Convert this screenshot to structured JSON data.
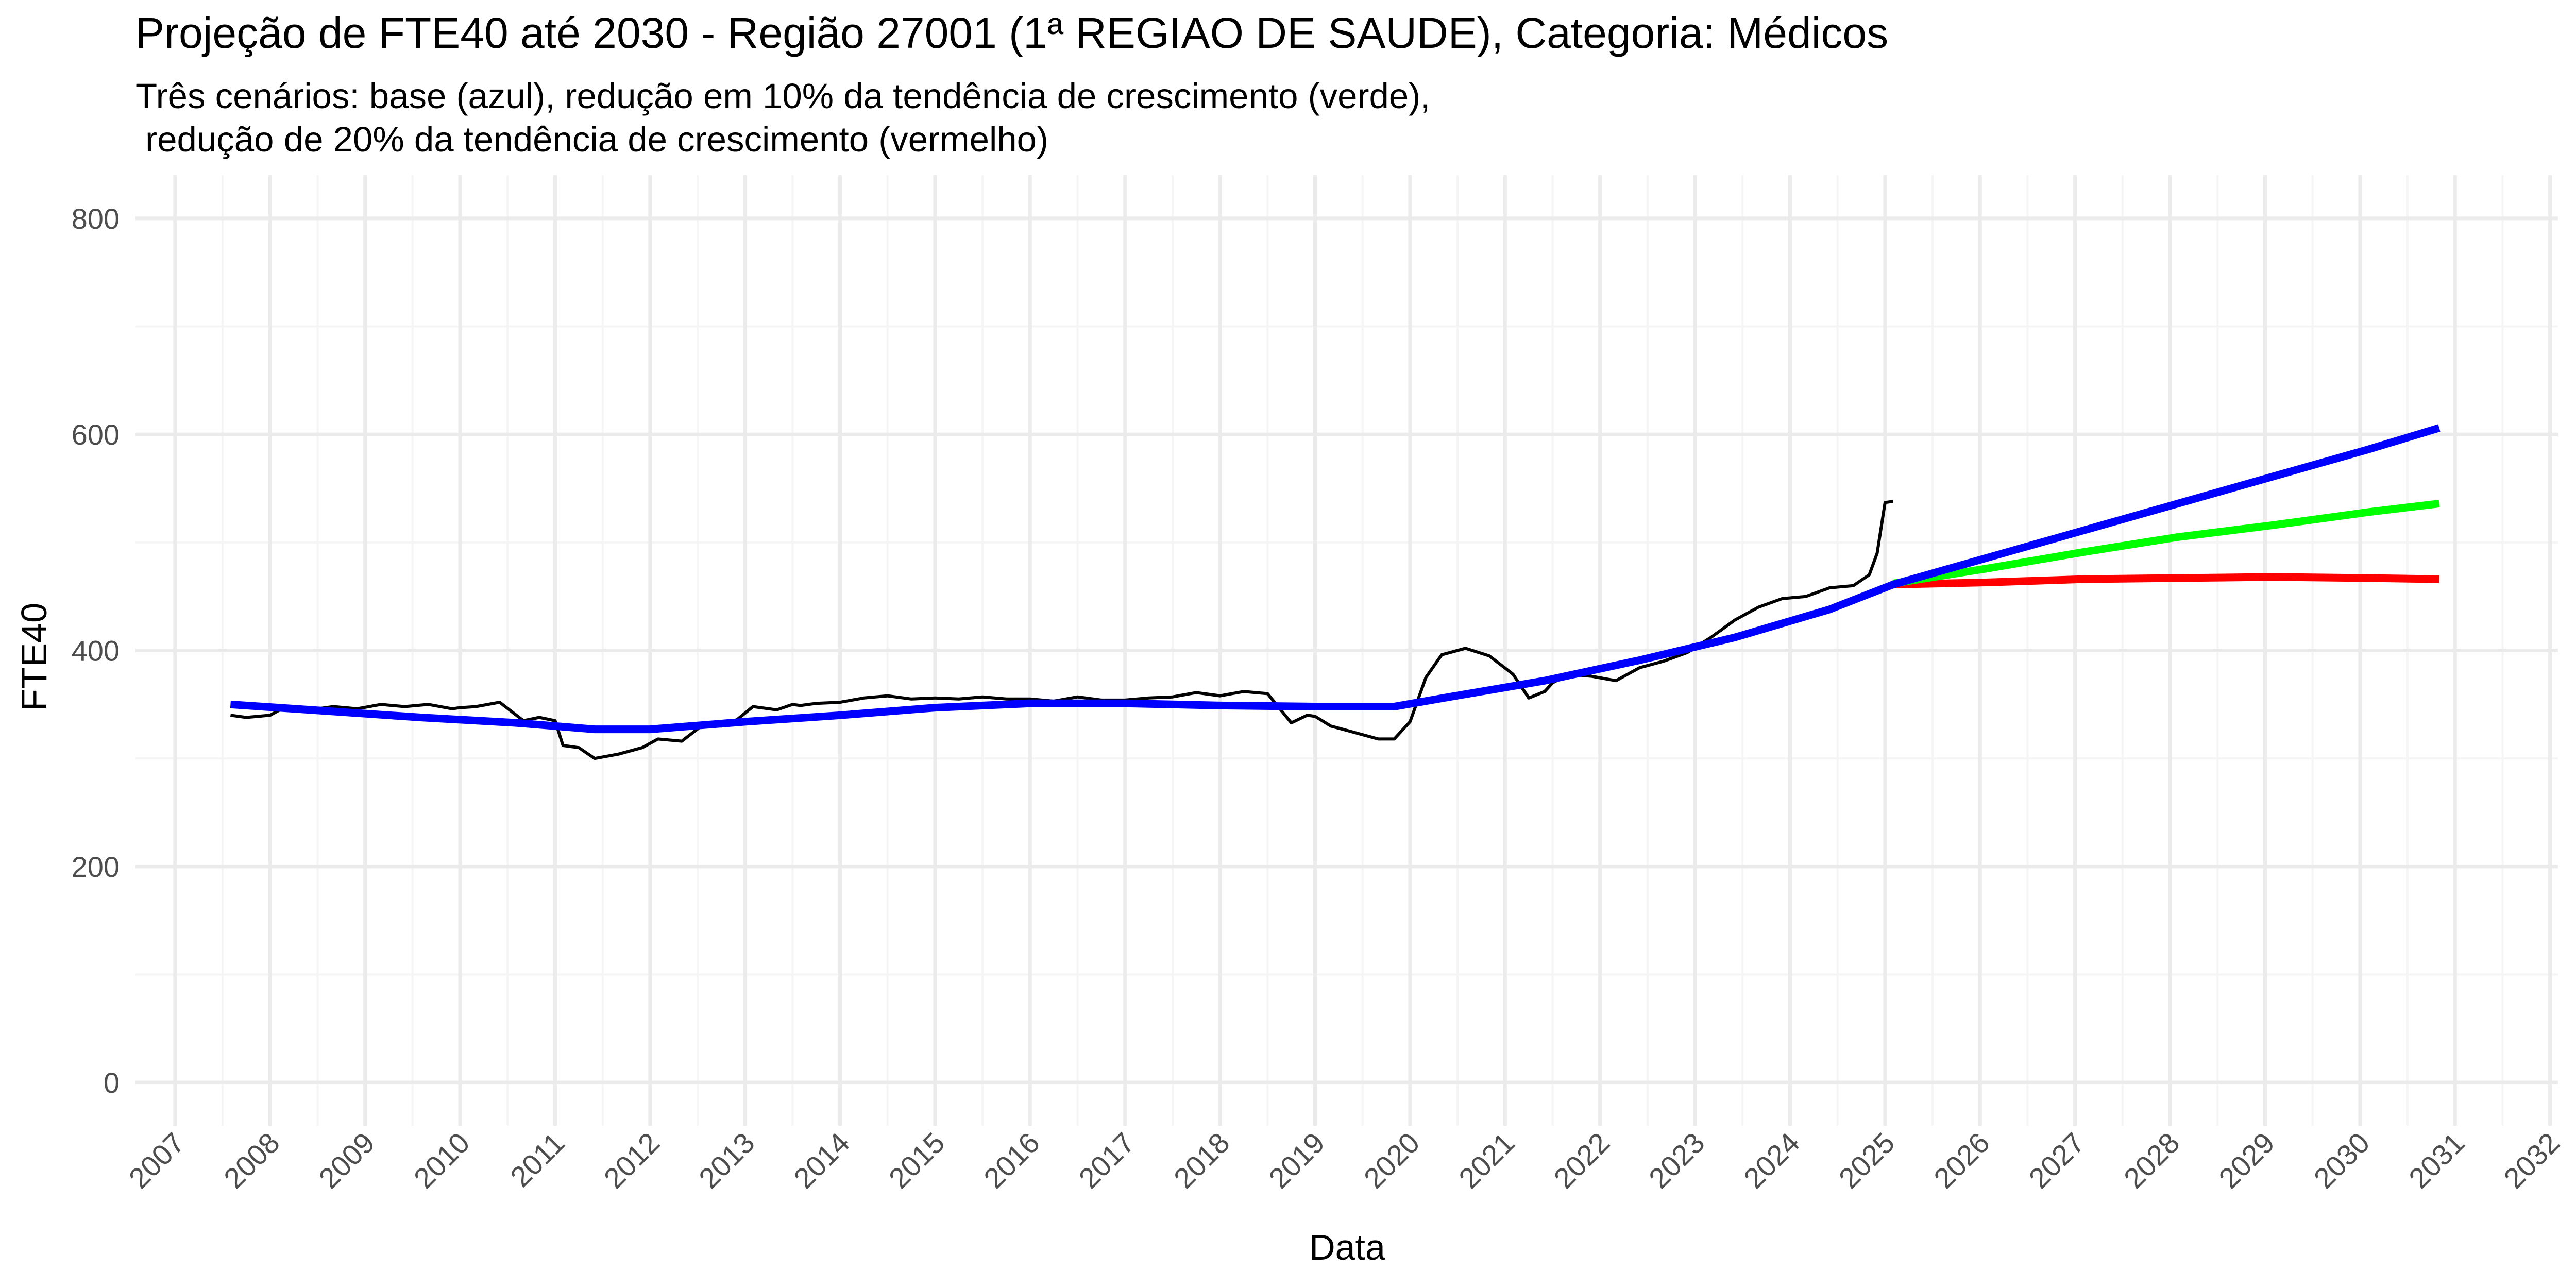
{
  "chart_data": {
    "type": "line",
    "title": "Projeção de FTE40 até 2030 - Região 27001 (1ª REGIAO DE SAUDE), Categoria: Médicos",
    "subtitle": "Três cenários: base (azul), redução em 10% da tendência de crescimento (verde),\n redução de 20% da tendência de crescimento (vermelho)",
    "xlabel": "Data",
    "ylabel": "FTE40",
    "xlim": [
      "2006-08-01",
      "2032-02-01"
    ],
    "ylim": [
      -40,
      840
    ],
    "x_ticks": [
      "2007",
      "2008",
      "2009",
      "2010",
      "2011",
      "2012",
      "2013",
      "2014",
      "2015",
      "2016",
      "2017",
      "2018",
      "2019",
      "2020",
      "2021",
      "2022",
      "2023",
      "2024",
      "2025",
      "2026",
      "2027",
      "2028",
      "2029",
      "2030",
      "2031",
      "2032"
    ],
    "y_ticks": [
      0,
      200,
      400,
      600,
      800
    ],
    "grid": true,
    "legend": "none",
    "colors": {
      "observed": "#000000",
      "base": "#0000ff",
      "reduction_10": "#00ff00",
      "reduction_20": "#ff0000",
      "grid_major": "#ebebeb",
      "grid_minor": "#f5f5f5"
    },
    "series": [
      {
        "key": "observed",
        "x": [
          "2007-08-01",
          "2007-10-01",
          "2008-01-01",
          "2008-03-01",
          "2008-06-01",
          "2008-09-01",
          "2008-12-01",
          "2009-03-01",
          "2009-06-01",
          "2009-09-01",
          "2009-12-01",
          "2010-01-01",
          "2010-03-01",
          "2010-06-01",
          "2010-09-01",
          "2010-11-01",
          "2011-01-01",
          "2011-02-01",
          "2011-04-01",
          "2011-06-01",
          "2011-09-01",
          "2011-12-01",
          "2012-02-01",
          "2012-05-01",
          "2012-08-01",
          "2012-10-01",
          "2012-12-01",
          "2013-02-01",
          "2013-05-01",
          "2013-07-01",
          "2013-08-01",
          "2013-10-01",
          "2014-01-01",
          "2014-04-01",
          "2014-07-01",
          "2014-10-01",
          "2015-01-01",
          "2015-04-01",
          "2015-07-01",
          "2015-10-01",
          "2016-01-01",
          "2016-04-01",
          "2016-07-01",
          "2016-10-01",
          "2017-01-01",
          "2017-04-01",
          "2017-07-01",
          "2017-10-01",
          "2018-01-01",
          "2018-04-01",
          "2018-07-01",
          "2018-10-01",
          "2018-12-01",
          "2019-01-01",
          "2019-03-01",
          "2019-05-01",
          "2019-07-01",
          "2019-09-01",
          "2019-11-01",
          "2020-01-01",
          "2020-03-01",
          "2020-05-01",
          "2020-08-01",
          "2020-11-01",
          "2021-02-01",
          "2021-04-01",
          "2021-06-01",
          "2021-07-01",
          "2021-09-01",
          "2021-12-01",
          "2022-03-01",
          "2022-06-01",
          "2022-09-01",
          "2022-12-01",
          "2023-03-01",
          "2023-06-01",
          "2023-09-01",
          "2023-12-01",
          "2024-03-01",
          "2024-06-01",
          "2024-09-01",
          "2024-11-01",
          "2024-12-01",
          "2025-01-01",
          "2025-02-01"
        ],
        "values": [
          340,
          338,
          340,
          348,
          345,
          348,
          346,
          350,
          348,
          350,
          346,
          347,
          348,
          352,
          335,
          338,
          335,
          312,
          310,
          300,
          304,
          310,
          318,
          316,
          333,
          330,
          336,
          348,
          345,
          350,
          349,
          351,
          352,
          356,
          358,
          355,
          356,
          355,
          357,
          355,
          355,
          353,
          357,
          354,
          354,
          356,
          357,
          361,
          358,
          362,
          360,
          333,
          340,
          339,
          330,
          326,
          322,
          318,
          318,
          334,
          375,
          396,
          402,
          395,
          378,
          356,
          362,
          370,
          378,
          376,
          372,
          384,
          390,
          398,
          412,
          428,
          440,
          448,
          450,
          458,
          460,
          470,
          490,
          537,
          538
        ]
      },
      {
        "key": "base",
        "x": [
          "2007-08-01",
          "2008-08-01",
          "2009-08-01",
          "2010-08-01",
          "2011-06-01",
          "2012-01-01",
          "2013-01-01",
          "2014-01-01",
          "2015-01-01",
          "2016-01-01",
          "2017-01-01",
          "2018-01-01",
          "2019-01-01",
          "2019-11-01",
          "2020-06-01",
          "2021-06-01",
          "2022-06-01",
          "2023-06-01",
          "2024-06-01",
          "2025-02-01",
          "2026-02-01",
          "2027-02-01",
          "2028-02-01",
          "2029-02-01",
          "2030-02-01",
          "2030-11-01"
        ],
        "values": [
          350,
          344,
          338,
          333,
          327,
          327,
          334,
          340,
          347,
          351,
          351,
          349,
          348,
          348,
          357,
          372,
          391,
          412,
          438,
          461,
          486,
          511,
          536,
          561,
          586,
          606
        ]
      },
      {
        "key": "reduction_10",
        "x": [
          "2025-02-01",
          "2026-02-01",
          "2027-02-01",
          "2028-02-01",
          "2029-02-01",
          "2030-02-01",
          "2030-11-01"
        ],
        "values": [
          462,
          476,
          491,
          505,
          516,
          528,
          536
        ]
      },
      {
        "key": "reduction_20",
        "x": [
          "2025-02-01",
          "2026-02-01",
          "2027-02-01",
          "2028-02-01",
          "2029-02-01",
          "2030-02-01",
          "2030-11-01"
        ],
        "values": [
          461,
          463,
          466,
          467,
          468,
          467,
          466
        ]
      }
    ]
  }
}
